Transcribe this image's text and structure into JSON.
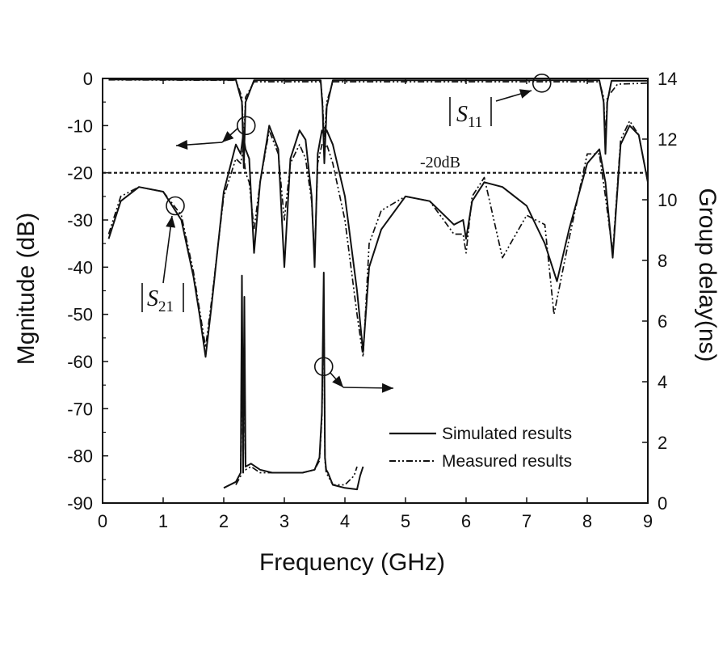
{
  "chart_data": {
    "type": "line",
    "xlabel": "Frequency (GHz)",
    "ylabel": "Mgnitude (dB)",
    "y2label": "Group delay(ns)",
    "xlim": [
      0,
      9
    ],
    "ylim": [
      -90,
      0
    ],
    "y2lim": [
      0,
      14
    ],
    "xticks": [
      "0",
      "1",
      "2",
      "3",
      "4",
      "5",
      "6",
      "7",
      "8",
      "9"
    ],
    "yticks": [
      "0",
      "-10",
      "-20",
      "-30",
      "-40",
      "-50",
      "-60",
      "-70",
      "-80",
      "-90"
    ],
    "y2ticks": [
      "0",
      "2",
      "4",
      "6",
      "8",
      "10",
      "12",
      "14"
    ],
    "reference_line": {
      "value": -20,
      "label": "-20dB"
    },
    "legend": {
      "placement": "lower-right",
      "entries": [
        {
          "label": "Simulated results",
          "style": "solid"
        },
        {
          "label": "Measured results",
          "style": "dash-dot-dot"
        }
      ]
    },
    "curve_labels": {
      "s11": {
        "base": "S",
        "sub": "11"
      },
      "s21": {
        "base": "S",
        "sub": "21"
      }
    },
    "series": [
      {
        "name": "Simulated results",
        "quantity": "|S11| (dB)",
        "x": [
          0.1,
          2.2,
          2.3,
          2.33,
          2.36,
          2.5,
          3.6,
          3.63,
          3.66,
          3.7,
          3.8,
          8.2,
          8.27,
          8.3,
          8.33,
          8.4,
          9.0
        ],
        "y": [
          -0.2,
          -0.3,
          -5,
          -19,
          -5,
          -0.4,
          -0.4,
          -6,
          -18,
          -6,
          -0.4,
          -0.4,
          -5,
          -16,
          -5,
          -0.5,
          -0.5
        ]
      },
      {
        "name": "Measured results",
        "quantity": "|S11| (dB)",
        "x": [
          0.1,
          2.2,
          2.3,
          2.33,
          2.36,
          2.5,
          3.6,
          3.63,
          3.66,
          3.7,
          3.8,
          8.2,
          8.27,
          8.3,
          8.33,
          8.5,
          9.0
        ],
        "y": [
          -0.3,
          -0.4,
          -4,
          -14,
          -4,
          -0.7,
          -0.7,
          -5,
          -13,
          -5,
          -0.7,
          -0.7,
          -4,
          -13,
          -4,
          -1.2,
          -1.0
        ]
      },
      {
        "name": "Simulated results",
        "quantity": "|S21| (dB)",
        "x": [
          0.1,
          0.3,
          0.6,
          1.0,
          1.3,
          1.5,
          1.6,
          1.7,
          1.8,
          2.0,
          2.2,
          2.28,
          2.32,
          2.36,
          2.42,
          2.5,
          2.6,
          2.75,
          2.9,
          3.0,
          3.1,
          3.25,
          3.35,
          3.45,
          3.5,
          3.55,
          3.62,
          3.66,
          3.7,
          3.8,
          4.0,
          4.2,
          4.3,
          4.4,
          4.6,
          5.0,
          5.4,
          5.8,
          5.95,
          6.0,
          6.1,
          6.3,
          6.6,
          7.0,
          7.3,
          7.5,
          7.7,
          8.0,
          8.2,
          8.3,
          8.42,
          8.55,
          8.7,
          8.85,
          9.0
        ],
        "y": [
          -34,
          -26,
          -23,
          -24,
          -30,
          -42,
          -50,
          -59,
          -48,
          -24,
          -14,
          -16,
          -12,
          -15,
          -17,
          -37,
          -22,
          -10,
          -15,
          -40,
          -17,
          -11,
          -13,
          -25,
          -40,
          -16,
          -11,
          -12,
          -11,
          -14,
          -25,
          -45,
          -58,
          -40,
          -32,
          -25,
          -26,
          -31,
          -30,
          -34,
          -26,
          -22,
          -23,
          -27,
          -35,
          -43,
          -32,
          -18,
          -15,
          -22,
          -38,
          -14,
          -10,
          -12,
          -22
        ]
      },
      {
        "name": "Measured results",
        "quantity": "|S21| (dB)",
        "x": [
          0.1,
          0.3,
          0.6,
          1.0,
          1.3,
          1.5,
          1.6,
          1.7,
          1.8,
          2.0,
          2.2,
          2.28,
          2.32,
          2.36,
          2.42,
          2.5,
          2.6,
          2.75,
          2.9,
          3.0,
          3.1,
          3.25,
          3.35,
          3.45,
          3.5,
          3.55,
          3.62,
          3.66,
          3.7,
          3.8,
          4.0,
          4.2,
          4.3,
          4.4,
          4.6,
          5.0,
          5.4,
          5.8,
          5.95,
          6.0,
          6.1,
          6.3,
          6.6,
          7.0,
          7.3,
          7.45,
          7.7,
          8.0,
          8.2,
          8.3,
          8.42,
          8.55,
          8.7,
          8.85,
          9.0
        ],
        "y": [
          -33,
          -25,
          -23,
          -24,
          -29,
          -41,
          -49,
          -57,
          -47,
          -25,
          -17,
          -18,
          -15,
          -20,
          -22,
          -32,
          -22,
          -11,
          -16,
          -30,
          -18,
          -14,
          -17,
          -26,
          -38,
          -18,
          -14,
          -15,
          -14,
          -18,
          -30,
          -50,
          -59,
          -35,
          -28,
          -25,
          -26,
          -33,
          -33,
          -37,
          -25,
          -21,
          -38,
          -29,
          -31,
          -50,
          -34,
          -16,
          -16,
          -25,
          -37,
          -13,
          -9,
          -12,
          -22
        ]
      },
      {
        "name": "Simulated results",
        "quantity": "Group delay (ns)",
        "x": [
          2.0,
          2.2,
          2.28,
          2.3,
          2.32,
          2.34,
          2.36,
          2.45,
          2.6,
          2.8,
          3.0,
          3.3,
          3.5,
          3.58,
          3.62,
          3.65,
          3.67,
          3.69,
          3.72,
          3.8,
          4.0,
          4.2,
          4.25,
          4.3
        ],
        "y": [
          0.5,
          0.7,
          1.0,
          7.5,
          1.0,
          6.8,
          1.2,
          1.3,
          1.1,
          1.0,
          1.0,
          1.0,
          1.1,
          1.5,
          3.0,
          7.6,
          1.5,
          1.1,
          1.0,
          0.6,
          0.5,
          0.45,
          0.9,
          1.2
        ]
      },
      {
        "name": "Measured results",
        "quantity": "Group delay (ns)",
        "x": [
          2.2,
          2.28,
          2.3,
          2.32,
          2.34,
          2.36,
          2.45,
          2.6,
          2.8,
          3.0,
          3.3,
          3.5,
          3.58,
          3.62,
          3.65,
          3.67,
          3.69,
          3.72,
          3.8,
          4.0,
          4.15,
          4.2
        ],
        "y": [
          0.6,
          0.9,
          6.0,
          1.0,
          5.5,
          1.1,
          1.2,
          1.0,
          1.0,
          1.0,
          1.0,
          1.1,
          1.4,
          2.8,
          6.8,
          1.4,
          1.0,
          0.9,
          0.6,
          0.6,
          0.9,
          1.2
        ]
      }
    ]
  }
}
